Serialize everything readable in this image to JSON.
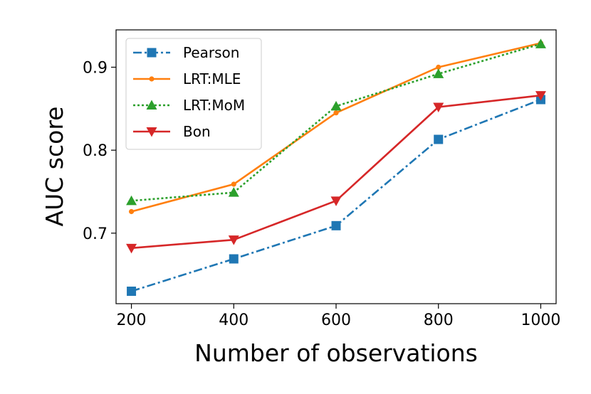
{
  "chart_data": {
    "type": "line",
    "title": "",
    "xlabel": "Number of observations",
    "ylabel": "AUC score",
    "xlim": [
      170,
      1030
    ],
    "ylim": [
      0.615,
      0.945
    ],
    "x": [
      200,
      400,
      600,
      800,
      1000
    ],
    "x_ticks": [
      200,
      400,
      600,
      800,
      1000
    ],
    "x_tick_labels": [
      "200",
      "400",
      "600",
      "800",
      "1000"
    ],
    "y_ticks": [
      0.7,
      0.8,
      0.9
    ],
    "y_tick_labels": [
      "0.7",
      "0.8",
      "0.9"
    ],
    "grid": false,
    "legend_position": "upper-left",
    "series": [
      {
        "name": "Pearson",
        "values": [
          0.63,
          0.669,
          0.709,
          0.813,
          0.861
        ],
        "color": "#1f77b4",
        "marker": "square",
        "linestyle": "dashdot"
      },
      {
        "name": "LRT:MLE",
        "values": [
          0.726,
          0.759,
          0.845,
          0.9,
          0.929
        ],
        "color": "#ff7f0e",
        "marker": "dot",
        "linestyle": "solid"
      },
      {
        "name": "LRT:MoM",
        "values": [
          0.739,
          0.749,
          0.853,
          0.892,
          0.928
        ],
        "color": "#2ca02c",
        "marker": "triangle-up",
        "linestyle": "dotted"
      },
      {
        "name": "Bon",
        "values": [
          0.682,
          0.692,
          0.739,
          0.852,
          0.866
        ],
        "color": "#d62728",
        "marker": "triangle-down",
        "linestyle": "solid"
      }
    ]
  }
}
